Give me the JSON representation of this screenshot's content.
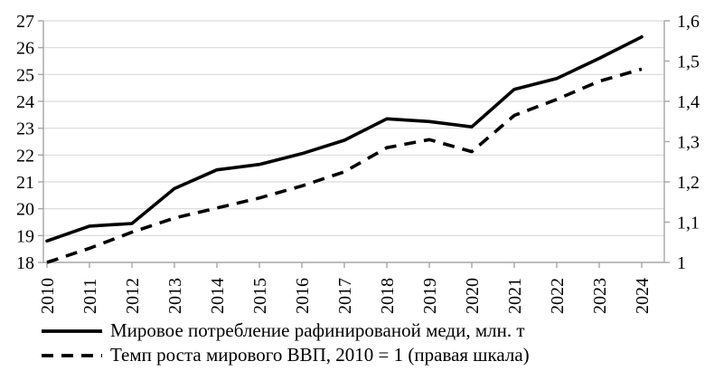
{
  "chart_data": {
    "type": "line",
    "x": [
      "2010",
      "2011",
      "2012",
      "2013",
      "2014",
      "2015",
      "2016",
      "2017",
      "2018",
      "2019",
      "2020",
      "2021",
      "2022",
      "2023",
      "2024"
    ],
    "series": [
      {
        "name": "Мировое потребление рафинированой меди, млн. т",
        "axis": "left",
        "line_style": "solid",
        "values": [
          18.8,
          19.35,
          19.45,
          20.75,
          21.45,
          21.65,
          22.05,
          22.55,
          23.35,
          23.25,
          23.05,
          24.45,
          24.85,
          25.6,
          26.4
        ]
      },
      {
        "name": "Темп роста мирового ВВП, 2010 = 1 (правая шкала)",
        "axis": "right",
        "line_style": "dashed",
        "values": [
          1.0,
          1.035,
          1.075,
          1.11,
          1.135,
          1.16,
          1.19,
          1.225,
          1.285,
          1.305,
          1.275,
          1.365,
          1.405,
          1.45,
          1.48
        ]
      }
    ],
    "left_axis": {
      "min": 18,
      "max": 27,
      "step": 1,
      "tick_labels": [
        "27",
        "26",
        "25",
        "24",
        "23",
        "22",
        "21",
        "20",
        "19",
        "18"
      ]
    },
    "right_axis": {
      "min": 1,
      "max": 1.6,
      "step": 0.1,
      "tick_labels": [
        "1,6",
        "1,5",
        "1,4",
        "1,3",
        "1,2",
        "1,1",
        "1"
      ]
    },
    "grid": true,
    "legend_position": "bottom",
    "title": "",
    "xlabel": "",
    "ylabel": "",
    "colors": {
      "series": "#000000",
      "gridline": "#d9d9d9",
      "axis": "#a6a6a6",
      "text": "#000000",
      "background": "#ffffff"
    }
  }
}
